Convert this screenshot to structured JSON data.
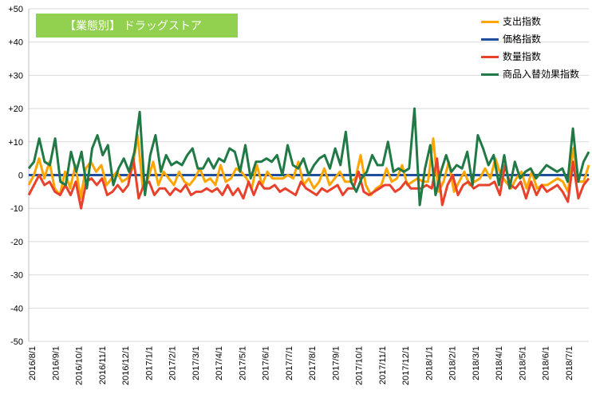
{
  "chart_data": {
    "type": "line",
    "title": "【業態別】 ドラッグストア",
    "ylim": [
      -50,
      50
    ],
    "yticks": [
      "+50",
      "+40",
      "+30",
      "+20",
      "+10",
      "0",
      "-10",
      "-20",
      "-30",
      "-40",
      "-50"
    ],
    "x_tick_labels": [
      "2016/8/1",
      "2016/9/1",
      "2016/10/1",
      "2016/11/1",
      "2016/12/1",
      "2017/1/1",
      "2017/2/1",
      "2017/3/1",
      "2017/4/1",
      "2017/5/1",
      "2017/6/1",
      "2017/7/1",
      "2017/8/1",
      "2017/9/1",
      "2017/10/1",
      "2017/11/1",
      "2017/12/1",
      "2018/1/1",
      "2018/2/1",
      "2018/3/1",
      "2018/4/1",
      "2018/5/1",
      "2018/6/1",
      "2018/7/1"
    ],
    "grid": true,
    "legend_position": "top-right",
    "series": [
      {
        "name": "支出指数",
        "color": "#ffa500",
        "values": [
          -3,
          0,
          5,
          -1,
          4,
          -4,
          -6,
          1,
          -4,
          3,
          -7,
          2,
          4,
          1,
          3,
          -3,
          -1,
          1,
          -2,
          -1,
          2,
          12,
          -4,
          -1,
          4,
          -3,
          1,
          -1,
          -3,
          1,
          -2,
          -3,
          -1,
          2,
          -2,
          -1,
          -3,
          3,
          -2,
          -1,
          2,
          1,
          -1,
          -4,
          3,
          -3,
          1,
          -1,
          -1,
          -1,
          0,
          -1,
          4,
          -3,
          -1,
          -4,
          -2,
          2,
          -3,
          -1,
          1,
          -2,
          -2,
          -1,
          6,
          -3,
          -6,
          -4,
          -3,
          2,
          -2,
          -1,
          3,
          -3,
          -2,
          -1,
          -2,
          -2,
          11,
          -5,
          -2,
          4,
          -5,
          -2,
          1,
          -3,
          -2,
          -1,
          2,
          -1,
          5,
          0,
          -2,
          -4,
          -1,
          1,
          -4,
          1,
          -4,
          -3,
          -3,
          -2,
          -1,
          -2,
          -5,
          8,
          -2,
          -2,
          3
        ]
      },
      {
        "name": "価格指数",
        "color": "#1f4e9e",
        "values": [
          0,
          0,
          0,
          0,
          0,
          0,
          0,
          0,
          0,
          0,
          0,
          0,
          0,
          0,
          0,
          0,
          0,
          0,
          0,
          0,
          0,
          0,
          0,
          0,
          0,
          0,
          0,
          0,
          0,
          0,
          0,
          0,
          0,
          0,
          0,
          0,
          0,
          0,
          0,
          0,
          0,
          0,
          0,
          0,
          0,
          0,
          0,
          0,
          0,
          0,
          0,
          0,
          0,
          0,
          0,
          0,
          0,
          0,
          0,
          0,
          0,
          0,
          0,
          0,
          0,
          0,
          0,
          0,
          0,
          0,
          0,
          0,
          0,
          0,
          0,
          0,
          0,
          0,
          0,
          0,
          0,
          0,
          0,
          0,
          0,
          0,
          0,
          0,
          0,
          0,
          0,
          0,
          0,
          0,
          0,
          0,
          0,
          0,
          0,
          0,
          0,
          0,
          0,
          0,
          0,
          0,
          0,
          0
        ]
      },
      {
        "name": "数量指数",
        "color": "#e8412c",
        "values": [
          -6,
          -3,
          0,
          -3,
          -2,
          -5,
          -6,
          -3,
          -6,
          -2,
          -10,
          -2,
          -1,
          -3,
          -1,
          -6,
          -5,
          -3,
          -5,
          -3,
          5,
          -7,
          -3,
          -2,
          -6,
          -4,
          -4,
          -6,
          -4,
          -5,
          -3,
          -6,
          -5,
          -5,
          -4,
          -5,
          -4,
          -6,
          -3,
          -6,
          -4,
          -7,
          -2,
          -6,
          -2,
          -4,
          -4,
          -3,
          -5,
          -4,
          -5,
          -6,
          -2,
          -4,
          -5,
          -6,
          -4,
          -5,
          -4,
          -3,
          -6,
          -4,
          -4,
          1,
          -5,
          -6,
          -5,
          -4,
          -3,
          -3,
          -5,
          -4,
          -2,
          -4,
          -4,
          -4,
          -3,
          -4,
          5,
          -9,
          -3,
          0,
          -6,
          -3,
          -2,
          -4,
          -3,
          -3,
          -3,
          -2,
          -6,
          3,
          -3,
          -4,
          -2,
          -7,
          -2,
          -6,
          -3,
          -5,
          -4,
          -3,
          -5,
          -8,
          4,
          -7,
          -3,
          -1
        ]
      },
      {
        "name": "商品入替効果指数",
        "color": "#217a45",
        "values": [
          2,
          4,
          11,
          4,
          3,
          11,
          -2,
          -3,
          7,
          1,
          7,
          -4,
          8,
          12,
          6,
          9,
          -3,
          2,
          5,
          1,
          7,
          19,
          -6,
          6,
          12,
          1,
          6,
          3,
          4,
          3,
          6,
          8,
          2,
          2,
          5,
          2,
          5,
          4,
          8,
          7,
          1,
          9,
          -1,
          4,
          4,
          5,
          4,
          6,
          0,
          9,
          3,
          2,
          5,
          0,
          3,
          5,
          6,
          2,
          8,
          3,
          13,
          -2,
          -5,
          -1,
          1,
          6,
          3,
          3,
          10,
          1,
          2,
          1,
          2,
          20,
          -9,
          2,
          9,
          -6,
          1,
          6,
          1,
          3,
          2,
          7,
          -3,
          12,
          8,
          3,
          6,
          -3,
          6,
          -4,
          4,
          -1,
          1,
          2,
          -1,
          1,
          3,
          2,
          1,
          2,
          -2,
          14,
          -2,
          4,
          7
        ]
      }
    ]
  }
}
